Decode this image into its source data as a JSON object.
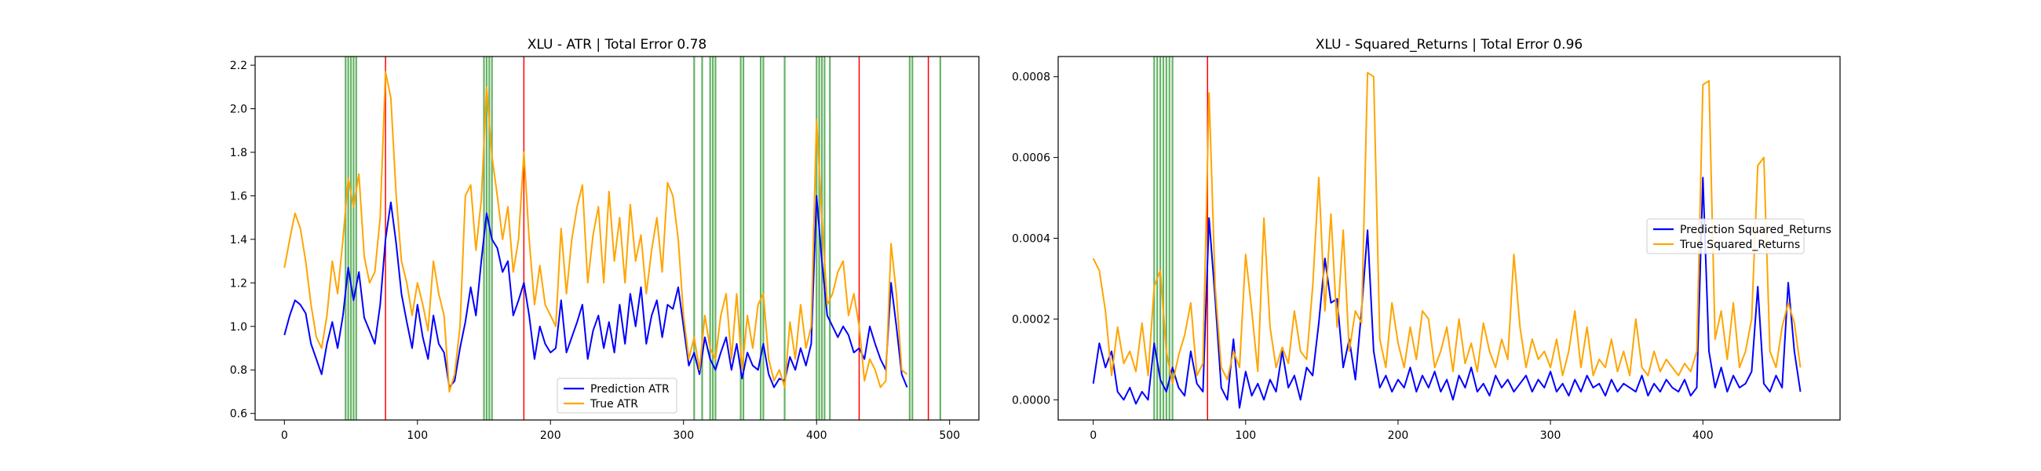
{
  "chart_data": [
    {
      "type": "line",
      "title": "XLU - ATR | Total Error 0.78",
      "xlabel": "",
      "ylabel": "",
      "xlim": [
        -22,
        522
      ],
      "ylim": [
        0.57,
        2.24
      ],
      "xticks": [
        0,
        100,
        200,
        300,
        400,
        500
      ],
      "yticks": [
        0.6,
        0.8,
        1.0,
        1.2,
        1.4,
        1.6,
        1.8,
        2.0,
        2.2
      ],
      "ytick_decimals": 1,
      "grid": false,
      "legend": "lower center",
      "green_vlines": [
        46,
        48,
        50,
        52,
        54,
        150,
        152,
        154,
        156,
        308,
        314,
        320,
        322,
        324,
        343,
        345,
        358,
        360,
        376,
        400,
        402,
        404,
        406,
        410,
        470,
        472,
        493
      ],
      "red_vlines": [
        76,
        180,
        432,
        484
      ],
      "series": [
        {
          "name": "Prediction ATR",
          "color": "#0000ff",
          "x": [
            0,
            4,
            8,
            12,
            16,
            20,
            24,
            28,
            32,
            36,
            40,
            44,
            48,
            52,
            56,
            60,
            64,
            68,
            72,
            76,
            80,
            84,
            88,
            92,
            96,
            100,
            104,
            108,
            112,
            116,
            120,
            124,
            128,
            132,
            136,
            140,
            144,
            148,
            152,
            156,
            160,
            164,
            168,
            172,
            176,
            180,
            184,
            188,
            192,
            196,
            200,
            204,
            208,
            212,
            216,
            220,
            224,
            228,
            232,
            236,
            240,
            244,
            248,
            252,
            256,
            260,
            264,
            268,
            272,
            276,
            280,
            284,
            288,
            292,
            296,
            300,
            304,
            308,
            312,
            316,
            320,
            324,
            328,
            332,
            336,
            340,
            344,
            348,
            352,
            356,
            360,
            364,
            368,
            372,
            376,
            380,
            384,
            388,
            392,
            396,
            400,
            404,
            408,
            412,
            416,
            420,
            424,
            428,
            432,
            436,
            440,
            444,
            448,
            452,
            456,
            460,
            464,
            468
          ],
          "values": [
            0.96,
            1.05,
            1.12,
            1.1,
            1.06,
            0.92,
            0.85,
            0.78,
            0.92,
            1.02,
            0.9,
            1.05,
            1.27,
            1.12,
            1.25,
            1.04,
            0.98,
            0.92,
            1.1,
            1.4,
            1.57,
            1.38,
            1.15,
            1.02,
            0.9,
            1.1,
            0.95,
            0.85,
            1.05,
            0.92,
            0.88,
            0.72,
            0.75,
            0.9,
            1.02,
            1.18,
            1.05,
            1.3,
            1.52,
            1.4,
            1.36,
            1.25,
            1.3,
            1.05,
            1.12,
            1.2,
            1.05,
            0.85,
            1.0,
            0.92,
            0.88,
            0.9,
            1.12,
            0.88,
            0.95,
            1.02,
            1.1,
            0.85,
            0.98,
            1.05,
            0.9,
            1.02,
            0.88,
            1.1,
            0.92,
            1.15,
            1.0,
            1.18,
            0.92,
            1.05,
            1.12,
            0.95,
            1.1,
            1.08,
            1.18,
            1.0,
            0.82,
            0.88,
            0.78,
            0.95,
            0.85,
            0.8,
            0.88,
            0.95,
            0.8,
            0.92,
            0.76,
            0.88,
            0.82,
            0.8,
            0.92,
            0.78,
            0.72,
            0.76,
            0.75,
            0.86,
            0.8,
            0.9,
            0.82,
            0.92,
            1.6,
            1.3,
            1.05,
            1.0,
            0.95,
            1.0,
            0.96,
            0.88,
            0.9,
            0.85,
            1.0,
            0.92,
            0.85,
            0.8,
            1.2,
            1.0,
            0.78,
            0.72
          ]
        },
        {
          "name": "True ATR",
          "color": "#ffa500",
          "x": [
            0,
            4,
            8,
            12,
            16,
            20,
            24,
            28,
            32,
            36,
            40,
            44,
            48,
            52,
            56,
            60,
            64,
            68,
            72,
            76,
            80,
            84,
            88,
            92,
            96,
            100,
            104,
            108,
            112,
            116,
            120,
            124,
            128,
            132,
            136,
            140,
            144,
            148,
            152,
            156,
            160,
            164,
            168,
            172,
            176,
            180,
            184,
            188,
            192,
            196,
            200,
            204,
            208,
            212,
            216,
            220,
            224,
            228,
            232,
            236,
            240,
            244,
            248,
            252,
            256,
            260,
            264,
            268,
            272,
            276,
            280,
            284,
            288,
            292,
            296,
            300,
            304,
            308,
            312,
            316,
            320,
            324,
            328,
            332,
            336,
            340,
            344,
            348,
            352,
            356,
            360,
            364,
            368,
            372,
            376,
            380,
            384,
            388,
            392,
            396,
            400,
            404,
            408,
            412,
            416,
            420,
            424,
            428,
            432,
            436,
            440,
            444,
            448,
            452,
            456,
            460,
            464,
            468
          ],
          "values": [
            1.27,
            1.4,
            1.52,
            1.45,
            1.3,
            1.1,
            0.95,
            0.9,
            1.05,
            1.3,
            1.15,
            1.4,
            1.68,
            1.55,
            1.7,
            1.32,
            1.2,
            1.25,
            1.5,
            2.17,
            2.05,
            1.6,
            1.3,
            1.2,
            1.05,
            1.2,
            1.1,
            0.98,
            1.3,
            1.15,
            1.05,
            0.7,
            0.78,
            1.0,
            1.6,
            1.65,
            1.35,
            1.58,
            2.1,
            1.78,
            1.6,
            1.4,
            1.55,
            1.25,
            1.4,
            1.8,
            1.4,
            1.1,
            1.28,
            1.1,
            1.05,
            1.0,
            1.45,
            1.15,
            1.4,
            1.55,
            1.65,
            1.2,
            1.42,
            1.55,
            1.2,
            1.62,
            1.3,
            1.5,
            1.2,
            1.56,
            1.3,
            1.42,
            1.15,
            1.35,
            1.5,
            1.25,
            1.66,
            1.6,
            1.4,
            1.05,
            0.85,
            0.95,
            0.8,
            1.05,
            0.9,
            0.85,
            1.05,
            1.15,
            0.85,
            1.15,
            0.8,
            1.05,
            0.9,
            1.1,
            1.15,
            0.85,
            0.75,
            0.8,
            0.72,
            1.02,
            0.85,
            1.1,
            0.9,
            1.0,
            1.95,
            1.5,
            1.1,
            1.15,
            1.25,
            1.3,
            1.05,
            1.15,
            1.0,
            0.75,
            0.85,
            0.8,
            0.72,
            0.75,
            1.38,
            1.15,
            0.8,
            0.78
          ]
        }
      ]
    },
    {
      "type": "line",
      "title": "XLU - Squared_Returns | Total Error 0.96",
      "xlabel": "",
      "ylabel": "",
      "xlim": [
        -23,
        490
      ],
      "ylim": [
        -5e-05,
        0.00085
      ],
      "xticks": [
        0,
        100,
        200,
        300,
        400
      ],
      "yticks": [
        0.0,
        0.0002,
        0.0004,
        0.0006,
        0.0008
      ],
      "ytick_decimals": 4,
      "grid": false,
      "legend": "center right",
      "green_vlines": [
        40,
        42,
        44,
        46,
        48,
        50,
        52
      ],
      "red_vlines": [
        75
      ],
      "series": [
        {
          "name": "Prediction Squared_Returns",
          "color": "#0000ff",
          "x": [
            0,
            4,
            8,
            12,
            16,
            20,
            24,
            28,
            32,
            36,
            40,
            44,
            48,
            52,
            56,
            60,
            64,
            68,
            72,
            76,
            80,
            84,
            88,
            92,
            96,
            100,
            104,
            108,
            112,
            116,
            120,
            124,
            128,
            132,
            136,
            140,
            144,
            148,
            152,
            156,
            160,
            164,
            168,
            172,
            176,
            180,
            184,
            188,
            192,
            196,
            200,
            204,
            208,
            212,
            216,
            220,
            224,
            228,
            232,
            236,
            240,
            244,
            248,
            252,
            256,
            260,
            264,
            268,
            272,
            276,
            280,
            284,
            288,
            292,
            296,
            300,
            304,
            308,
            312,
            316,
            320,
            324,
            328,
            332,
            336,
            340,
            344,
            348,
            352,
            356,
            360,
            364,
            368,
            372,
            376,
            380,
            384,
            388,
            392,
            396,
            400,
            404,
            408,
            412,
            416,
            420,
            424,
            428,
            432,
            436,
            440,
            444,
            448,
            452,
            456,
            460,
            464
          ],
          "values": [
            4e-05,
            0.00014,
            8e-05,
            0.00012,
            2e-05,
            0.0,
            3e-05,
            -1e-05,
            2e-05,
            0.0,
            0.00014,
            5e-05,
            2e-05,
            8e-05,
            3e-05,
            1e-05,
            0.00012,
            4e-05,
            2e-05,
            0.00045,
            0.00025,
            3e-05,
            0.0,
            0.00015,
            -2e-05,
            7e-05,
            1e-05,
            4e-05,
            0.0,
            5e-05,
            2e-05,
            0.00012,
            3e-05,
            6e-05,
            0.0,
            8e-05,
            6e-05,
            0.00019,
            0.00035,
            0.00024,
            0.00025,
            8e-05,
            0.00015,
            5e-05,
            0.00022,
            0.00042,
            0.00012,
            3e-05,
            6e-05,
            2e-05,
            5e-05,
            3e-05,
            8e-05,
            2e-05,
            6e-05,
            3e-05,
            7e-05,
            2e-05,
            5e-05,
            0.0,
            6e-05,
            3e-05,
            8e-05,
            2e-05,
            4e-05,
            1e-05,
            6e-05,
            3e-05,
            5e-05,
            2e-05,
            4e-05,
            6e-05,
            2e-05,
            5e-05,
            3e-05,
            7e-05,
            2e-05,
            4e-05,
            1e-05,
            5e-05,
            2e-05,
            6e-05,
            3e-05,
            4e-05,
            1e-05,
            5e-05,
            2e-05,
            4e-05,
            3e-05,
            2e-05,
            6e-05,
            1e-05,
            4e-05,
            2e-05,
            5e-05,
            3e-05,
            2e-05,
            5e-05,
            1e-05,
            3e-05,
            0.00055,
            0.00012,
            3e-05,
            8e-05,
            2e-05,
            6e-05,
            3e-05,
            4e-05,
            7e-05,
            0.00028,
            4e-05,
            2e-05,
            6e-05,
            3e-05,
            0.00029,
            0.00012,
            2e-05
          ]
        },
        {
          "name": "True Squared_Returns",
          "color": "#ffa500",
          "x": [
            0,
            4,
            8,
            12,
            16,
            20,
            24,
            28,
            32,
            36,
            40,
            44,
            48,
            52,
            56,
            60,
            64,
            68,
            72,
            76,
            80,
            84,
            88,
            92,
            96,
            100,
            104,
            108,
            112,
            116,
            120,
            124,
            128,
            132,
            136,
            140,
            144,
            148,
            152,
            156,
            160,
            164,
            168,
            172,
            176,
            180,
            184,
            188,
            192,
            196,
            200,
            204,
            208,
            212,
            216,
            220,
            224,
            228,
            232,
            236,
            240,
            244,
            248,
            252,
            256,
            260,
            264,
            268,
            272,
            276,
            280,
            284,
            288,
            292,
            296,
            300,
            304,
            308,
            312,
            316,
            320,
            324,
            328,
            332,
            336,
            340,
            344,
            348,
            352,
            356,
            360,
            364,
            368,
            372,
            376,
            380,
            384,
            388,
            392,
            396,
            400,
            404,
            408,
            412,
            416,
            420,
            424,
            428,
            432,
            436,
            440,
            444,
            448,
            452,
            456,
            460,
            464
          ],
          "values": [
            0.00035,
            0.00032,
            0.00022,
            6e-05,
            0.00018,
            9e-05,
            0.00012,
            7e-05,
            0.00019,
            6e-05,
            0.00028,
            0.00032,
            0.00012,
            4e-05,
            0.00011,
            0.00016,
            0.00024,
            6e-05,
            9e-05,
            0.00076,
            0.00028,
            8e-05,
            5e-05,
            0.00012,
            8e-05,
            0.00036,
            0.00022,
            7e-05,
            0.00045,
            0.00018,
            8e-05,
            0.00013,
            9e-05,
            0.00022,
            0.00012,
            0.0001,
            0.00028,
            0.00055,
            0.00022,
            0.00046,
            0.00018,
            0.00042,
            0.00012,
            0.00022,
            0.00019,
            0.00081,
            0.0008,
            0.00015,
            8e-05,
            0.00024,
            0.00014,
            8e-05,
            0.00018,
            0.0001,
            0.00022,
            0.0002,
            8e-05,
            0.00012,
            0.00018,
            7e-05,
            0.0002,
            9e-05,
            0.00014,
            7e-05,
            0.00019,
            0.00012,
            8e-05,
            0.00015,
            0.0001,
            0.00036,
            0.00018,
            8e-05,
            0.00015,
            0.0001,
            0.00012,
            8e-05,
            0.00015,
            6e-05,
            0.00012,
            0.00022,
            8e-05,
            0.00018,
            6e-05,
            0.0001,
            8e-05,
            0.00015,
            7e-05,
            0.00012,
            6e-05,
            0.0002,
            8e-05,
            6e-05,
            0.00012,
            7e-05,
            0.0001,
            8e-05,
            6e-05,
            9e-05,
            7e-05,
            0.00012,
            0.00078,
            0.00079,
            0.00015,
            0.00022,
            0.0001,
            0.00024,
            8e-05,
            0.00012,
            0.0002,
            0.00058,
            0.0006,
            0.00012,
            8e-05,
            0.00018,
            0.00024,
            0.00019,
            8e-05
          ]
        }
      ]
    }
  ]
}
